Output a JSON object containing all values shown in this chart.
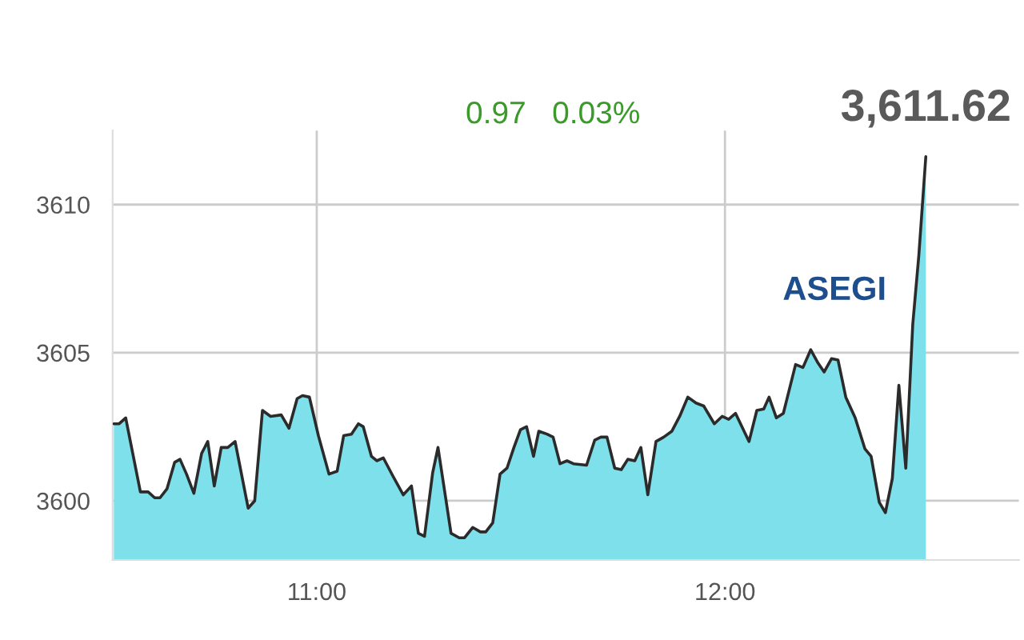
{
  "chart_data": {
    "type": "area",
    "x": [
      10.503,
      10.516,
      10.532,
      10.568,
      10.587,
      10.603,
      10.616,
      10.633,
      10.652,
      10.665,
      10.681,
      10.699,
      10.718,
      10.733,
      10.749,
      10.766,
      10.782,
      10.8,
      10.832,
      10.848,
      10.867,
      10.887,
      10.913,
      10.932,
      10.952,
      10.965,
      10.982,
      11.004,
      11.03,
      11.05,
      11.066,
      11.085,
      11.102,
      11.114,
      11.134,
      11.147,
      11.163,
      11.186,
      11.212,
      11.232,
      11.249,
      11.264,
      11.284,
      11.297,
      11.329,
      11.349,
      11.362,
      11.382,
      11.401,
      11.414,
      11.431,
      11.449,
      11.466,
      11.483,
      11.499,
      11.514,
      11.531,
      11.544,
      11.564,
      11.579,
      11.596,
      11.613,
      11.629,
      11.661,
      11.681,
      11.696,
      11.711,
      11.73,
      11.746,
      11.762,
      11.779,
      11.794,
      11.811,
      11.831,
      11.85,
      11.87,
      11.889,
      11.909,
      11.929,
      11.948,
      11.974,
      11.993,
      12.009,
      12.026,
      12.059,
      12.078,
      12.095,
      12.108,
      12.126,
      12.143,
      12.173,
      12.191,
      12.21,
      12.228,
      12.243,
      12.261,
      12.277,
      12.296,
      12.319,
      12.343,
      12.358,
      12.378,
      12.393,
      12.41,
      12.426,
      12.443,
      12.46,
      12.475,
      12.492
    ],
    "series": [
      {
        "color": "#7ee0ea",
        "values": [
          3602.6,
          3602.6,
          3602.8,
          3600.3,
          3600.3,
          3600.1,
          3600.1,
          3600.4,
          3601.3,
          3601.4,
          3600.9,
          3600.25,
          3601.6,
          3602.0,
          3600.5,
          3601.8,
          3601.8,
          3602.0,
          3599.75,
          3600.0,
          3603.05,
          3602.85,
          3602.9,
          3602.45,
          3603.45,
          3603.55,
          3603.5,
          3602.2,
          3600.9,
          3601.0,
          3602.2,
          3602.25,
          3602.6,
          3602.5,
          3601.5,
          3601.35,
          3601.45,
          3600.85,
          3600.2,
          3600.5,
          3598.9,
          3598.8,
          3600.95,
          3601.8,
          3598.9,
          3598.75,
          3598.75,
          3599.1,
          3598.95,
          3598.95,
          3599.25,
          3600.9,
          3601.1,
          3601.8,
          3602.4,
          3602.5,
          3601.5,
          3602.35,
          3602.25,
          3602.15,
          3601.25,
          3601.35,
          3601.25,
          3601.2,
          3602.05,
          3602.15,
          3602.15,
          3601.1,
          3601.05,
          3601.4,
          3601.35,
          3601.8,
          3600.2,
          3602.0,
          3602.15,
          3602.35,
          3602.85,
          3603.5,
          3603.3,
          3603.2,
          3602.6,
          3602.85,
          3602.75,
          3602.95,
          3602.0,
          3603.05,
          3603.1,
          3603.5,
          3602.8,
          3602.95,
          3604.6,
          3604.5,
          3605.1,
          3604.65,
          3604.35,
          3604.8,
          3604.75,
          3603.5,
          3602.8,
          3601.75,
          3601.5,
          3599.95,
          3599.6,
          3600.75,
          3603.9,
          3601.1,
          3605.95,
          3608.3,
          3611.62
        ]
      }
    ],
    "xlim": [
      10.5,
      12.72
    ],
    "ylim": [
      3598,
      3612.5
    ],
    "xticks": [
      {
        "value": 11,
        "label": "11:00"
      },
      {
        "value": 12,
        "label": "12:00"
      }
    ],
    "yticks": [
      3600,
      3605,
      3610
    ],
    "grid": true,
    "annotations": [
      {
        "text": "3,611.62",
        "x": 12.492,
        "y": 3611.62
      },
      "0.97   0.03%",
      "ASEGI"
    ]
  }
}
